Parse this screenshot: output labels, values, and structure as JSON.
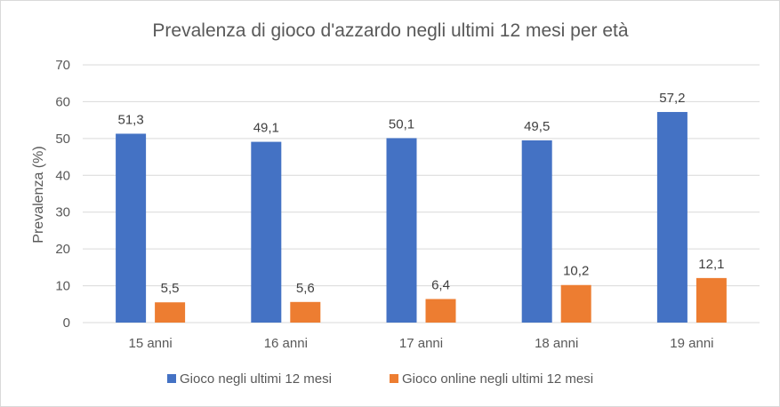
{
  "chart_data": {
    "type": "bar",
    "title": "Prevalenza di gioco d'azzardo negli ultimi 12 mesi per età",
    "xlabel": "",
    "ylabel": "Prevalenza (%)",
    "ylim": [
      0,
      70
    ],
    "yticks": [
      "0",
      "10",
      "20",
      "30",
      "40",
      "50",
      "60",
      "70"
    ],
    "grid": true,
    "legend_position": "bottom",
    "categories": [
      "15 anni",
      "16 anni",
      "17 anni",
      "18 anni",
      "19 anni"
    ],
    "series": [
      {
        "name": "Gioco negli ultimi 12 mesi",
        "values": [
          51.3,
          49.1,
          50.1,
          49.5,
          57.2
        ],
        "labels": [
          "51,3",
          "49,1",
          "50,1",
          "49,5",
          "57,2"
        ],
        "color": "#4472c4"
      },
      {
        "name": "Gioco online negli ultimi 12 mesi",
        "values": [
          5.5,
          5.6,
          6.4,
          10.2,
          12.1
        ],
        "labels": [
          "5,5",
          "5,6",
          "6,4",
          "10,2",
          "12,1"
        ],
        "color": "#ed7d31"
      }
    ]
  }
}
